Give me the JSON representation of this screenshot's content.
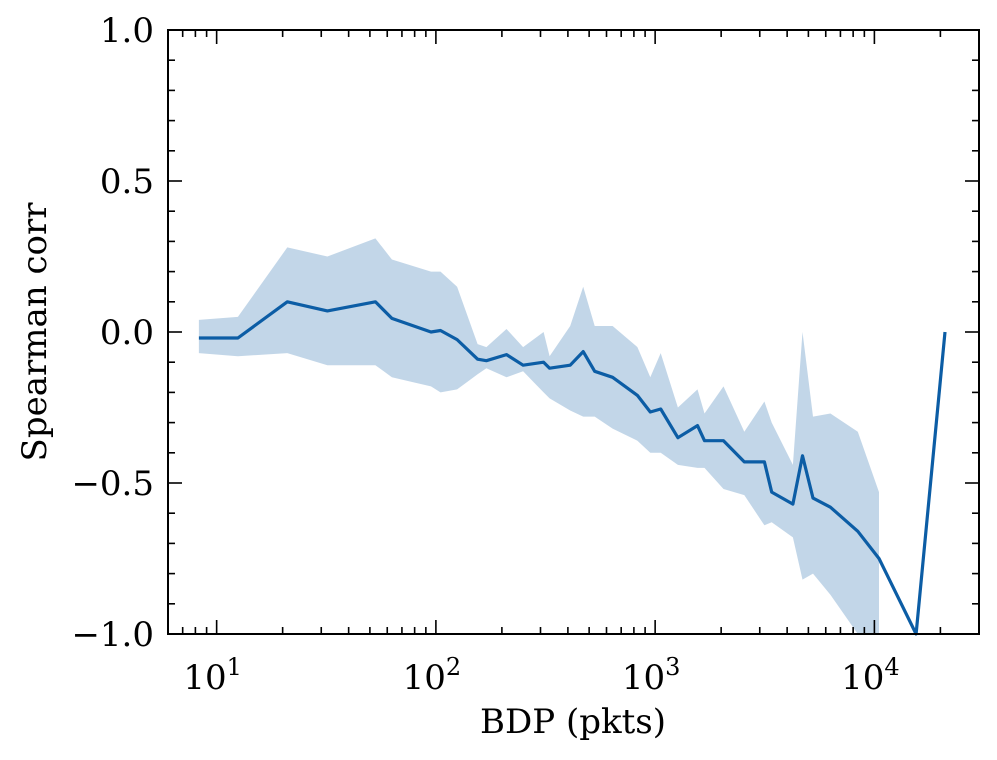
{
  "chart_data": {
    "type": "line",
    "xlabel": "BDP (pkts)",
    "ylabel": "Spearman corr",
    "xscale": "log",
    "xlim": [
      6,
      30000
    ],
    "ylim": [
      -1.0,
      1.0
    ],
    "grid": false,
    "legend": "none",
    "x_tick_labels": [
      {
        "base": "10",
        "exp": "1",
        "value": 10
      },
      {
        "base": "10",
        "exp": "2",
        "value": 100
      },
      {
        "base": "10",
        "exp": "3",
        "value": 1000
      },
      {
        "base": "10",
        "exp": "4",
        "value": 10000
      }
    ],
    "y_tick_labels": [
      {
        "label": "1.0",
        "value": 1.0
      },
      {
        "label": "0.5",
        "value": 0.5
      },
      {
        "label": "0.0",
        "value": 0.0
      },
      {
        "label": "−0.5",
        "value": -0.5
      },
      {
        "label": "−1.0",
        "value": -1.0
      }
    ],
    "series": [
      {
        "color": "#0c5da5",
        "band_color": "#0c5da5",
        "band_opacity": 0.25,
        "x": [
          8.3,
          12.5,
          21,
          32,
          53,
          63,
          95,
          105,
          125,
          155,
          170,
          210,
          250,
          310,
          330,
          410,
          470,
          530,
          640,
          830,
          950,
          1060,
          1270,
          1560,
          1680,
          2050,
          2550,
          3150,
          3400,
          4250,
          4700,
          5250,
          6300,
          8400,
          10500,
          15500,
          21000
        ],
        "y": [
          -0.02,
          -0.02,
          0.1,
          0.07,
          0.1,
          0.045,
          0.0,
          0.005,
          -0.025,
          -0.09,
          -0.095,
          -0.075,
          -0.11,
          -0.1,
          -0.12,
          -0.11,
          -0.065,
          -0.13,
          -0.15,
          -0.21,
          -0.265,
          -0.255,
          -0.35,
          -0.31,
          -0.36,
          -0.36,
          -0.43,
          -0.43,
          -0.53,
          -0.57,
          -0.41,
          -0.55,
          -0.58,
          -0.66,
          -0.75,
          -1.0,
          0.0
        ],
        "upper": [
          0.04,
          0.05,
          0.28,
          0.25,
          0.31,
          0.24,
          0.2,
          0.2,
          0.15,
          -0.04,
          -0.05,
          0.01,
          -0.05,
          0.0,
          -0.08,
          0.02,
          0.15,
          0.02,
          0.02,
          -0.05,
          -0.15,
          -0.07,
          -0.25,
          -0.19,
          -0.27,
          -0.18,
          -0.33,
          -0.23,
          -0.3,
          -0.44,
          0.0,
          -0.28,
          -0.27,
          -0.33,
          -0.53,
          null,
          null
        ],
        "lower": [
          -0.07,
          -0.08,
          -0.07,
          -0.11,
          -0.11,
          -0.15,
          -0.18,
          -0.2,
          -0.19,
          -0.14,
          -0.12,
          -0.15,
          -0.13,
          -0.2,
          -0.22,
          -0.26,
          -0.28,
          -0.28,
          -0.32,
          -0.36,
          -0.4,
          -0.4,
          -0.44,
          -0.45,
          -0.45,
          -0.52,
          -0.54,
          -0.64,
          -0.63,
          -0.68,
          -0.82,
          -0.8,
          -0.87,
          -1.0,
          -1.0,
          null,
          null
        ]
      }
    ]
  }
}
